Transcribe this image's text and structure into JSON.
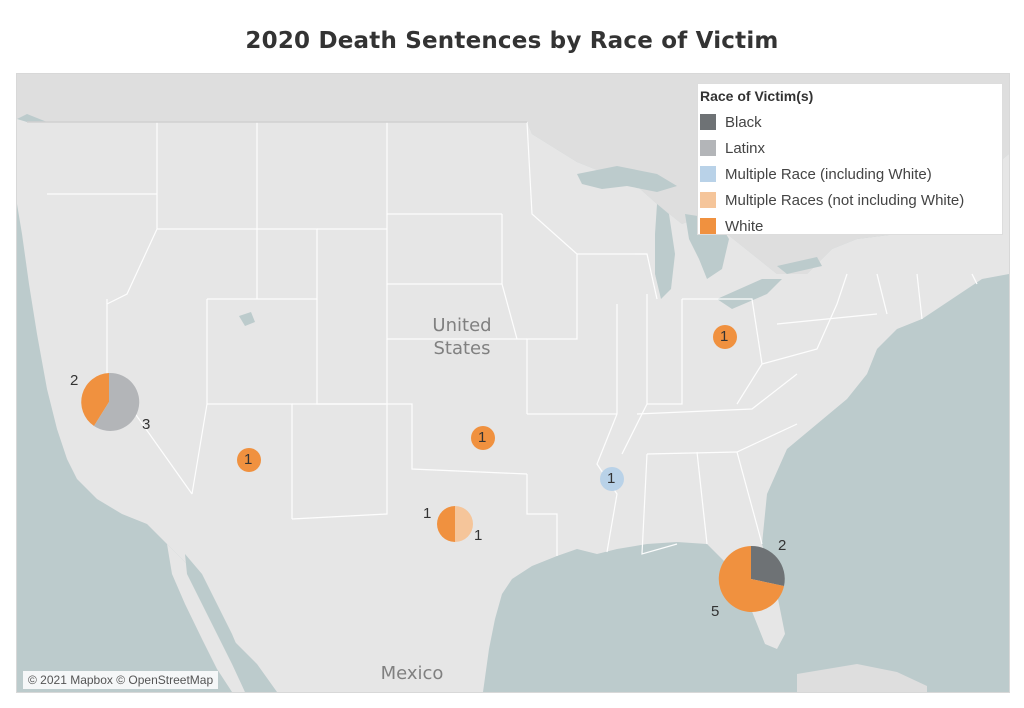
{
  "title": "2020 Death Sentences by Race of Victim",
  "map_labels": {
    "country_us_line1": "United",
    "country_us_line2": "States",
    "mexico": "Mexico"
  },
  "attribution": "© 2021 Mapbox © OpenStreetMap",
  "legend": {
    "title": "Race of Victim(s)",
    "items": [
      {
        "label": "Black",
        "color": "#6e7275"
      },
      {
        "label": "Latinx",
        "color": "#b3b5b8"
      },
      {
        "label": "Multiple Race (including White)",
        "color": "#b9d2e8"
      },
      {
        "label": "Multiple Races (not including White)",
        "color": "#f5c59a"
      },
      {
        "label": "White",
        "color": "#f0913f"
      }
    ]
  },
  "chart_data": {
    "type": "pie-map",
    "markers": [
      {
        "location": "California",
        "slices": [
          {
            "race": "White",
            "value": 2,
            "label": "2"
          },
          {
            "race": "Latinx",
            "value": 3,
            "label": "3"
          }
        ]
      },
      {
        "location": "Arizona",
        "slices": [
          {
            "race": "White",
            "value": 1,
            "label": "1"
          }
        ]
      },
      {
        "location": "Oklahoma",
        "slices": [
          {
            "race": "White",
            "value": 1,
            "label": "1"
          }
        ]
      },
      {
        "location": "Texas",
        "slices": [
          {
            "race": "White",
            "value": 1,
            "label": "1"
          },
          {
            "race": "Multiple Races (not including White)",
            "value": 1,
            "label": "1"
          }
        ]
      },
      {
        "location": "Mississippi",
        "slices": [
          {
            "race": "Multiple Race (including White)",
            "value": 1,
            "label": "1"
          }
        ]
      },
      {
        "location": "Ohio",
        "slices": [
          {
            "race": "White",
            "value": 1,
            "label": "1"
          }
        ]
      },
      {
        "location": "Florida",
        "slices": [
          {
            "race": "Black",
            "value": 2,
            "label": "2"
          },
          {
            "race": "White",
            "value": 5,
            "label": "5"
          }
        ]
      }
    ]
  }
}
